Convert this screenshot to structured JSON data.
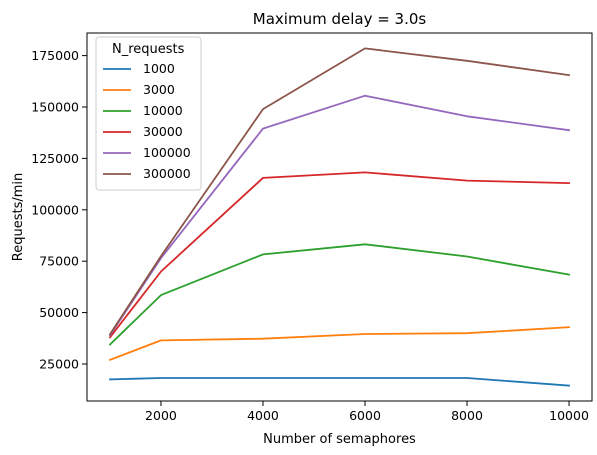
{
  "chart_data": {
    "type": "line",
    "title": "Maximum delay = 3.0s",
    "xlabel": "Number of semaphores",
    "ylabel": "Requests/min",
    "x": [
      1000,
      2000,
      4000,
      6000,
      8000,
      10000
    ],
    "xlim": [
      550,
      10450
    ],
    "ylim": [
      7000,
      186000
    ],
    "xticks": [
      2000,
      4000,
      6000,
      8000,
      10000
    ],
    "xtick_labels": [
      "2000",
      "4000",
      "6000",
      "8000",
      "10000"
    ],
    "yticks": [
      25000,
      50000,
      75000,
      100000,
      125000,
      150000,
      175000
    ],
    "ytick_labels": [
      "25000",
      "50000",
      "75000",
      "100000",
      "125000",
      "150000",
      "175000"
    ],
    "grid": false,
    "legend": {
      "title": "N_requests",
      "placement": "top-left"
    },
    "series": [
      {
        "name": "1000",
        "color": "#1f77b4",
        "values": [
          17500,
          18200,
          18200,
          18200,
          18200,
          14500
        ]
      },
      {
        "name": "3000",
        "color": "#ff7f0e",
        "values": [
          27000,
          36500,
          37300,
          39600,
          40000,
          42900
        ]
      },
      {
        "name": "10000",
        "color": "#2ca02c",
        "values": [
          34500,
          58500,
          78300,
          83200,
          77300,
          68500
        ]
      },
      {
        "name": "30000",
        "color": "#d62728",
        "values": [
          38000,
          70000,
          115500,
          118200,
          114200,
          113000
        ]
      },
      {
        "name": "100000",
        "color": "#9467bd",
        "values": [
          39000,
          76500,
          139500,
          155500,
          145500,
          138700
        ]
      },
      {
        "name": "300000",
        "color": "#8c564b",
        "values": [
          39500,
          77500,
          149000,
          178500,
          172500,
          165500
        ]
      }
    ]
  }
}
